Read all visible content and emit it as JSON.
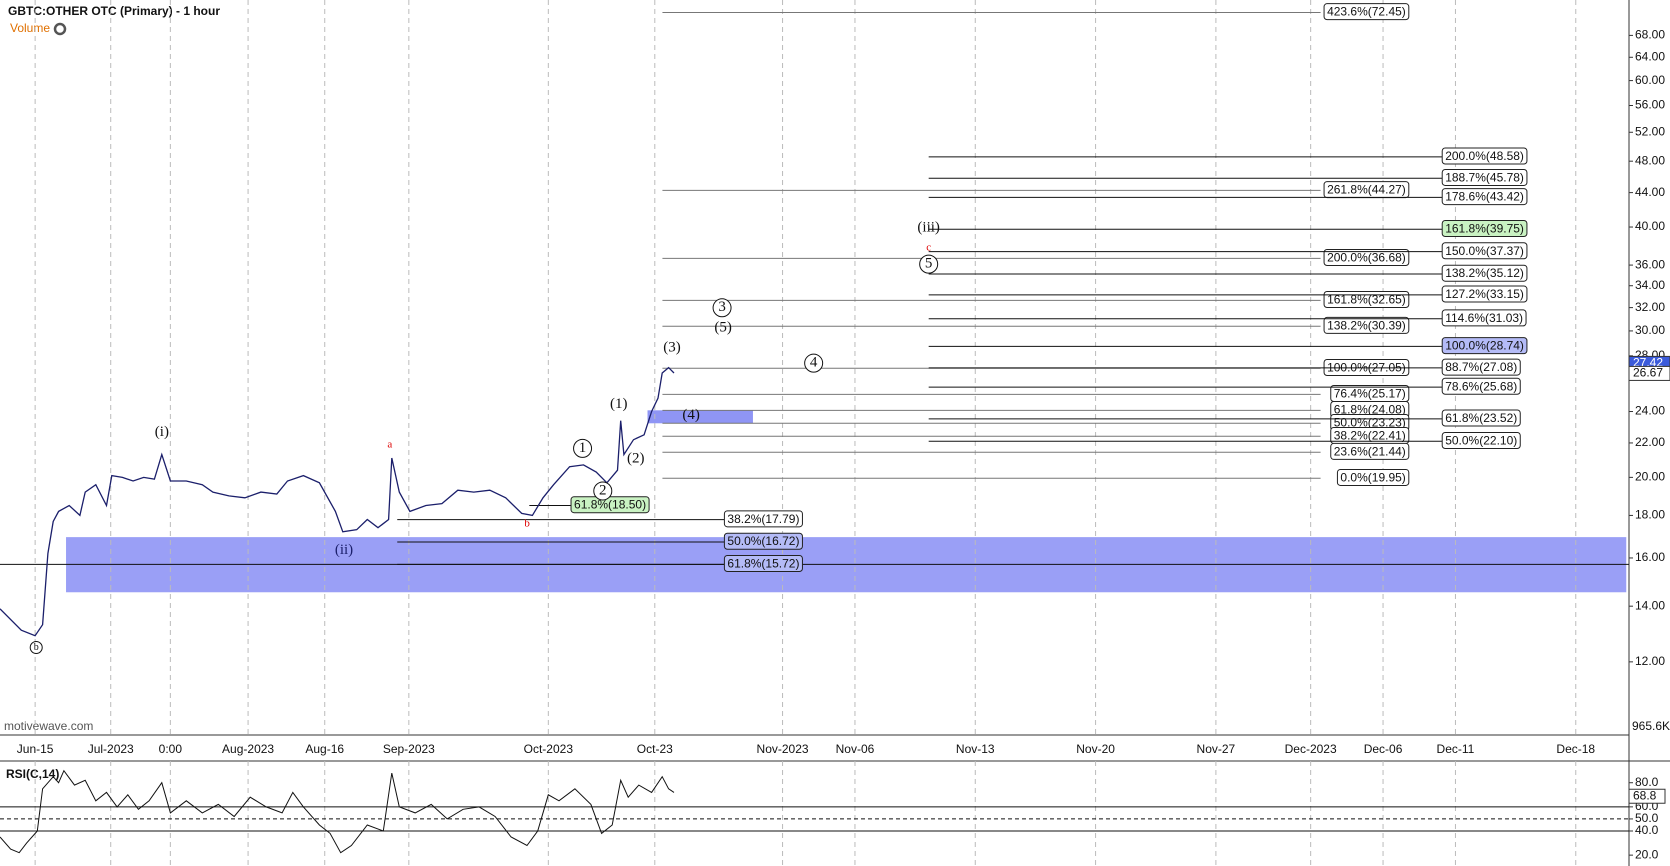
{
  "chart_data": {
    "type": "line",
    "title": "GBTC:OTHER OTC (Primary) - 1 hour",
    "subtitle": "Volume",
    "watermark": "motivewave.com",
    "color": "#1b1f6b",
    "log_scale": true,
    "grid": true,
    "x": [
      0,
      20,
      33,
      40,
      45,
      50,
      55,
      65,
      75,
      80,
      90,
      100,
      105,
      115,
      125,
      135,
      145,
      152,
      160,
      175,
      190,
      200,
      215,
      230,
      245,
      260,
      270,
      285,
      300,
      315,
      322,
      335,
      345,
      355,
      365,
      368,
      375,
      385,
      400,
      415,
      430,
      445,
      460,
      475,
      490,
      500,
      510,
      520,
      535,
      548,
      560,
      570,
      580,
      583,
      586,
      595,
      605,
      612,
      618,
      622,
      628,
      633
    ],
    "values": [
      13.9,
      13.1,
      12.9,
      13.3,
      16.2,
      17.7,
      18.2,
      18.5,
      18.0,
      19.2,
      19.6,
      18.5,
      20.1,
      20.0,
      19.8,
      20.0,
      19.9,
      21.3,
      19.8,
      19.8,
      19.6,
      19.2,
      19.0,
      18.9,
      19.2,
      19.1,
      19.8,
      20.1,
      19.7,
      18.2,
      17.2,
      17.3,
      17.8,
      17.4,
      17.8,
      21.1,
      19.2,
      18.2,
      18.5,
      18.6,
      19.3,
      19.2,
      19.3,
      18.9,
      18.1,
      18.0,
      18.9,
      19.6,
      20.6,
      20.7,
      20.3,
      19.7,
      20.4,
      23.4,
      21.3,
      22.2,
      22.5,
      24.0,
      24.9,
      26.7,
      27.1,
      26.7
    ],
    "xlim": [
      0,
      1530
    ],
    "xticks": [
      {
        "value": 33,
        "label": "Jun-15"
      },
      {
        "value": 104,
        "label": "Jul-2023"
      },
      {
        "value": 160,
        "label": "0:00"
      },
      {
        "value": 233,
        "label": "Aug-2023"
      },
      {
        "value": 305,
        "label": "Aug-16"
      },
      {
        "value": 384,
        "label": "Sep-2023"
      },
      {
        "value": 515,
        "label": "Oct-2023"
      },
      {
        "value": 615,
        "label": "Oct-23"
      },
      {
        "value": 735,
        "label": "Nov-2023"
      },
      {
        "value": 803,
        "label": "Nov-06"
      },
      {
        "value": 916,
        "label": "Nov-13"
      },
      {
        "value": 1029,
        "label": "Nov-20"
      },
      {
        "value": 1142,
        "label": "Nov-27"
      },
      {
        "value": 1231,
        "label": "Dec-2023"
      },
      {
        "value": 1299,
        "label": "Dec-06"
      },
      {
        "value": 1367,
        "label": "Dec-11"
      },
      {
        "value": 1480,
        "label": "Dec-18"
      }
    ],
    "ylim": [
      9.8,
      75
    ],
    "yticks": [
      {
        "value": 12,
        "label": "12.00"
      },
      {
        "value": 14,
        "label": "14.00"
      },
      {
        "value": 16,
        "label": "16.00"
      },
      {
        "value": 18,
        "label": "18.00"
      },
      {
        "value": 20,
        "label": "20.00"
      },
      {
        "value": 22,
        "label": "22.00"
      },
      {
        "value": 24,
        "label": "24.00"
      },
      {
        "value": 28,
        "label": "28.00"
      },
      {
        "value": 30,
        "label": "30.00"
      },
      {
        "value": 32,
        "label": "32.00"
      },
      {
        "value": 34,
        "label": "34.00"
      },
      {
        "value": 36,
        "label": "36.00"
      },
      {
        "value": 40,
        "label": "40.00"
      },
      {
        "value": 44,
        "label": "44.00"
      },
      {
        "value": 48,
        "label": "48.00"
      },
      {
        "value": 52,
        "label": "52.00"
      },
      {
        "value": 56,
        "label": "56.00"
      },
      {
        "value": 60,
        "label": "60.00"
      },
      {
        "value": 64,
        "label": "64.00"
      },
      {
        "value": 68,
        "label": "68.00"
      }
    ],
    "price_labels": [
      {
        "value": 27.42,
        "color": "#3b5bdb"
      },
      {
        "value": 26.67,
        "color": "#ffffff"
      }
    ],
    "volume_label": "965.6K",
    "zones": [
      [
        14.55,
        16.95
      ],
      [
        23.23,
        24.08
      ]
    ],
    "zone_color": "#8f95f5",
    "fib_sets": [
      [
        {
          "label": "423.6%(72.45)",
          "value": 72.45
        },
        {
          "label": "261.8%(44.27)",
          "value": 44.27
        },
        {
          "label": "200.0%(36.68)",
          "value": 36.68
        },
        {
          "label": "161.8%(32.65)",
          "value": 32.65
        },
        {
          "label": "138.2%(30.39)",
          "value": 30.39
        },
        {
          "label": "100.0%(27.05)",
          "value": 27.05
        },
        {
          "label": "76.4%(25.17)",
          "value": 25.17
        },
        {
          "label": "61.8%(24.08)",
          "value": 24.08
        },
        {
          "label": "50.0%(23.23)",
          "value": 23.23
        },
        {
          "label": "38.2%(22.41)",
          "value": 22.41
        },
        {
          "label": "23.6%(21.44)",
          "value": 21.44
        },
        {
          "label": "0.0%(19.95)",
          "value": 19.95
        }
      ],
      [
        {
          "label": "200.0%(48.58)",
          "value": 48.58
        },
        {
          "label": "188.7%(45.78)",
          "value": 45.78
        },
        {
          "label": "178.6%(43.42)",
          "value": 43.42
        },
        {
          "label": "161.8%(39.75)",
          "value": 39.75,
          "fill": "#c9f2c2"
        },
        {
          "label": "150.0%(37.37)",
          "value": 37.37
        },
        {
          "label": "138.2%(35.12)",
          "value": 35.12
        },
        {
          "label": "127.2%(33.15)",
          "value": 33.15
        },
        {
          "label": "114.6%(31.03)",
          "value": 31.03
        },
        {
          "label": "100.0%(28.74)",
          "value": 28.74,
          "fill": "#b4bbf7"
        },
        {
          "label": "88.7%(27.08)",
          "value": 27.08
        },
        {
          "label": "78.6%(25.68)",
          "value": 25.68
        },
        {
          "label": "61.8%(23.52)",
          "value": 23.52
        },
        {
          "label": "50.0%(22.10)",
          "value": 22.1
        }
      ],
      [
        {
          "label": "38.2%(17.79)",
          "value": 17.79
        },
        {
          "label": "50.0%(16.72)",
          "value": 16.72,
          "fill": "#b4bbf7"
        },
        {
          "label": "61.8%(15.72)",
          "value": 15.72,
          "fill": "#b4bbf7"
        }
      ],
      [
        {
          "label": "61.8%(18.50)",
          "value": 18.5,
          "fill": "#c9f2c2"
        }
      ]
    ],
    "wave_labels": [
      "b",
      "(i)",
      "(ii)",
      "a",
      "b",
      "1",
      "2",
      "(1)",
      "(2)",
      "(3)",
      "(4)",
      "3",
      "(5)",
      "4",
      "(iii)",
      "c",
      "5"
    ],
    "rsi": {
      "title": "RSI(C,14)",
      "color": "#111111",
      "x": [
        0,
        10,
        18,
        25,
        35,
        40,
        50,
        55,
        60,
        70,
        80,
        90,
        100,
        110,
        120,
        130,
        140,
        152,
        160,
        175,
        190,
        205,
        220,
        235,
        250,
        265,
        275,
        285,
        300,
        310,
        320,
        330,
        345,
        360,
        368,
        375,
        390,
        405,
        420,
        435,
        450,
        465,
        480,
        495,
        505,
        515,
        525,
        540,
        555,
        565,
        575,
        583,
        590,
        600,
        612,
        622,
        628,
        633
      ],
      "values": [
        35,
        25,
        22,
        30,
        40,
        75,
        85,
        80,
        90,
        78,
        82,
        65,
        72,
        60,
        70,
        58,
        65,
        80,
        55,
        65,
        55,
        62,
        52,
        68,
        60,
        55,
        72,
        60,
        45,
        38,
        22,
        28,
        45,
        40,
        88,
        60,
        55,
        62,
        50,
        58,
        60,
        52,
        35,
        28,
        40,
        70,
        65,
        75,
        62,
        38,
        45,
        82,
        68,
        78,
        72,
        85,
        75,
        72
      ],
      "ylim": [
        11,
        98
      ],
      "yticks": [
        {
          "value": 80,
          "label": "80.0"
        },
        {
          "value": 60,
          "label": "60.0"
        },
        {
          "value": 50,
          "label": "50.0"
        },
        {
          "value": 40,
          "label": "40.0"
        },
        {
          "value": 20,
          "label": "20.0"
        }
      ],
      "current": {
        "value": 68.8,
        "label": "68.8"
      }
    }
  }
}
